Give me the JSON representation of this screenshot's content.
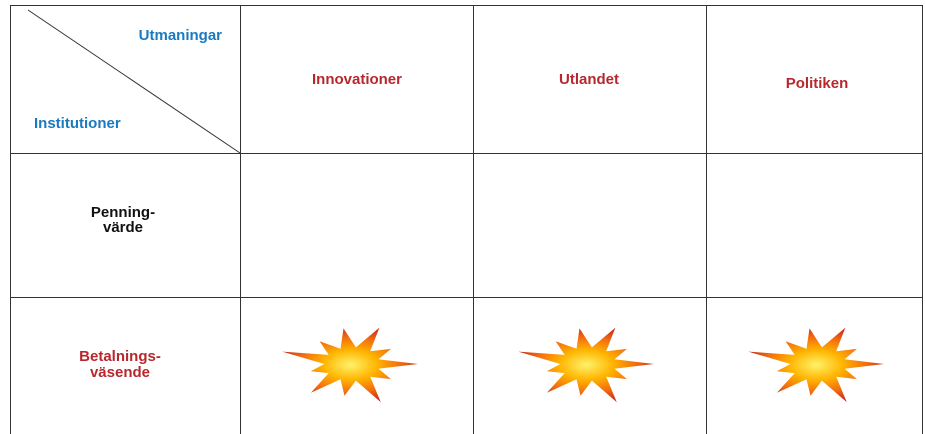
{
  "header": {
    "challenges": "Utmaningar",
    "institutions": "Institutioner",
    "columns": [
      "Innovationer",
      "Utlandet",
      "Politiken"
    ]
  },
  "rows": [
    {
      "label": [
        "Penning-",
        "värde"
      ]
    },
    {
      "label": [
        "Betalnings-",
        "väsende"
      ]
    }
  ]
}
